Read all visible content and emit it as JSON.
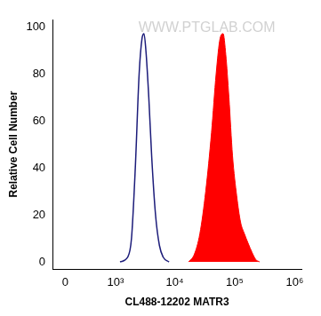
{
  "chart_data": {
    "type": "line",
    "x_label": "CL488-12202 MATR3",
    "y_label": "Relative Cell Number",
    "annotations": [
      "WWW.PTGLAB.COM"
    ],
    "log": "x",
    "grid": false,
    "xlim": [
      -150,
      1300000
    ],
    "xticks": [
      0,
      {
        "value": 1000,
        "label": "10³"
      },
      {
        "value": 10000,
        "label": "10⁴"
      },
      {
        "value": 100000,
        "label": "10⁵"
      },
      {
        "value": 1000000,
        "label": "10⁶"
      }
    ],
    "ylim": [
      -3,
      103
    ],
    "yticks": [
      0,
      20,
      40,
      60,
      80,
      100
    ],
    "series": [
      {
        "type": "line",
        "color": "#1c1c7a",
        "marker": "none",
        "line_style": "solid",
        "x": [
          1200,
          1620,
          1880,
          2180,
          2530,
          2830,
          3050,
          3280,
          3670,
          4100,
          4760,
          5530,
          6400,
          8000
        ],
        "values": [
          0,
          2,
          10,
          40,
          80,
          95,
          97,
          90,
          70,
          45,
          20,
          7,
          2,
          0
        ]
      },
      {
        "type": "area",
        "color": "#ff0000",
        "marker": "none",
        "line_style": "solid",
        "x": [
          16900,
          21000,
          26200,
          32800,
          41000,
          49000,
          57000,
          64000,
          71000,
          80000,
          92000,
          108000,
          125000,
          145000,
          167000,
          195000,
          225000,
          260000
        ],
        "values": [
          0,
          3,
          12,
          30,
          55,
          80,
          95,
          97,
          88,
          70,
          45,
          28,
          17,
          12,
          8,
          4,
          1,
          0
        ]
      }
    ]
  }
}
